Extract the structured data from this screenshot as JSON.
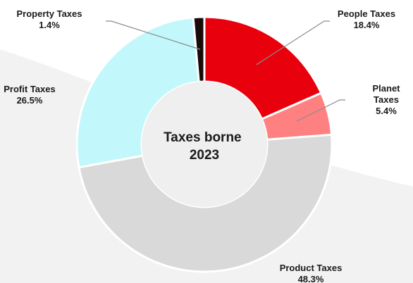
{
  "chart_data": {
    "type": "pie",
    "center_label": [
      "Taxes borne",
      "2023"
    ],
    "slices": [
      {
        "name": "People Taxes",
        "label_lines": [
          "People Taxes"
        ],
        "value": 18.4,
        "value_label": "18.4%",
        "color": "#e8000d"
      },
      {
        "name": "Planet Taxes",
        "label_lines": [
          "Planet",
          "Taxes"
        ],
        "value": 5.4,
        "value_label": "5.4%",
        "color": "#ff8080"
      },
      {
        "name": "Product Taxes",
        "label_lines": [
          "Product Taxes"
        ],
        "value": 48.3,
        "value_label": "48.3%",
        "color": "#d9d9d9"
      },
      {
        "name": "Profit Taxes",
        "label_lines": [
          "Profit Taxes"
        ],
        "value": 26.5,
        "value_label": "26.5%",
        "color": "#c2f8fb"
      },
      {
        "name": "Property Taxes",
        "label_lines": [
          "Property Taxes"
        ],
        "value": 1.4,
        "value_label": "1.4%",
        "color": "#1a0a0a"
      }
    ],
    "background_swoosh_color": "#f2f2f2"
  }
}
